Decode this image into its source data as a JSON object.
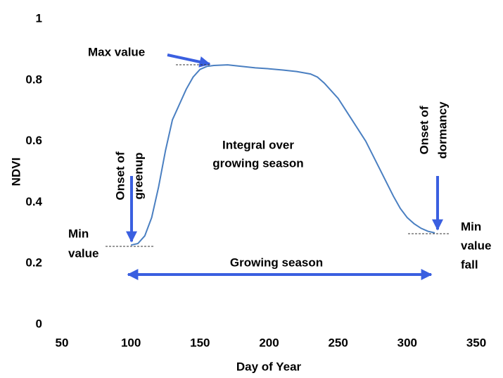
{
  "chart_data": {
    "type": "line",
    "x_label": "Day of Year",
    "y_label": "NDVI",
    "x": [
      100,
      105,
      110,
      115,
      120,
      125,
      130,
      135,
      140,
      145,
      150,
      155,
      160,
      170,
      180,
      190,
      200,
      210,
      220,
      230,
      235,
      240,
      250,
      260,
      270,
      280,
      290,
      295,
      300,
      305,
      310,
      315,
      320
    ],
    "values": [
      0.26,
      0.265,
      0.29,
      0.35,
      0.45,
      0.57,
      0.67,
      0.72,
      0.77,
      0.81,
      0.835,
      0.845,
      0.848,
      0.85,
      0.845,
      0.84,
      0.837,
      0.833,
      0.828,
      0.82,
      0.81,
      0.79,
      0.74,
      0.67,
      0.6,
      0.51,
      0.42,
      0.38,
      0.35,
      0.33,
      0.315,
      0.305,
      0.3
    ],
    "color": "#4a7fc1",
    "xlim": [
      50,
      350
    ],
    "xticks": [
      50,
      100,
      150,
      200,
      250,
      300,
      350
    ],
    "ylim": [
      0,
      1
    ],
    "yticks": [
      0,
      0.2,
      0.4,
      0.6,
      0.8,
      1
    ],
    "annotations": [
      [
        "Max value"
      ],
      [
        "Onset of",
        "greenup"
      ],
      [
        "Min",
        "value"
      ],
      [
        "Integral over",
        "growing season"
      ],
      [
        "Growing season"
      ],
      [
        "Onset of",
        "dormancy"
      ],
      [
        "Min",
        "value",
        "fall"
      ]
    ]
  }
}
